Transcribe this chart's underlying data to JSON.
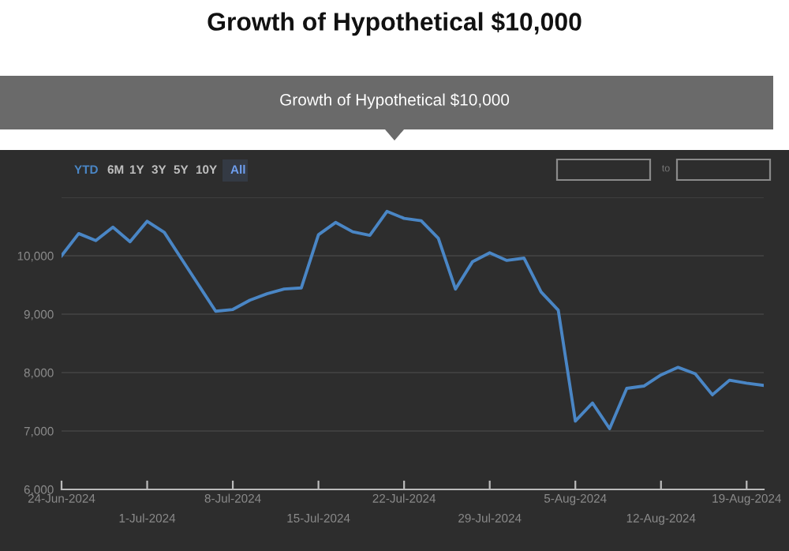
{
  "chart_data": {
    "type": "line",
    "title": "Growth of Hypothetical $10,000",
    "subtitle": "Growth of Hypothetical $10,000",
    "annotations": [
      "YTD",
      "6M",
      "1Y",
      "3Y",
      "5Y",
      "10Y",
      "All",
      "to"
    ],
    "categories": [
      "24-Jun-2024",
      null,
      null,
      null,
      null,
      "1-Jul-2024",
      null,
      null,
      null,
      null,
      "8-Jul-2024",
      null,
      null,
      null,
      null,
      "15-Jul-2024",
      null,
      null,
      null,
      null,
      "22-Jul-2024",
      null,
      null,
      null,
      null,
      "29-Jul-2024",
      null,
      null,
      null,
      null,
      "5-Aug-2024",
      null,
      null,
      null,
      null,
      "12-Aug-2024",
      null,
      null,
      null,
      null,
      "19-Aug-2024",
      null
    ],
    "series": [
      {
        "color": "#4a86c5",
        "values": [
          10000,
          10380,
          10260,
          10490,
          10240,
          10590,
          10400,
          9950,
          9500,
          9050,
          9080,
          9240,
          9350,
          9430,
          9450,
          10360,
          10570,
          10410,
          10350,
          10760,
          10640,
          10600,
          10300,
          9430,
          9900,
          10050,
          9920,
          9960,
          9380,
          9070,
          7170,
          7480,
          7040,
          7730,
          7770,
          7960,
          8090,
          7980,
          7620,
          7870,
          7820,
          7780
        ]
      }
    ],
    "ylim": [
      6000,
      11000
    ],
    "yticks": [
      {
        "value": 6000,
        "label": "6,000"
      },
      {
        "value": 7000,
        "label": "7,000"
      },
      {
        "value": 8000,
        "label": "8,000"
      },
      {
        "value": 9000,
        "label": "9,000"
      },
      {
        "value": 10000,
        "label": "10,000"
      },
      {
        "value": 11000,
        "label": null
      }
    ],
    "grid": "y",
    "legend": false,
    "marker": "none",
    "line_style": "solid"
  }
}
